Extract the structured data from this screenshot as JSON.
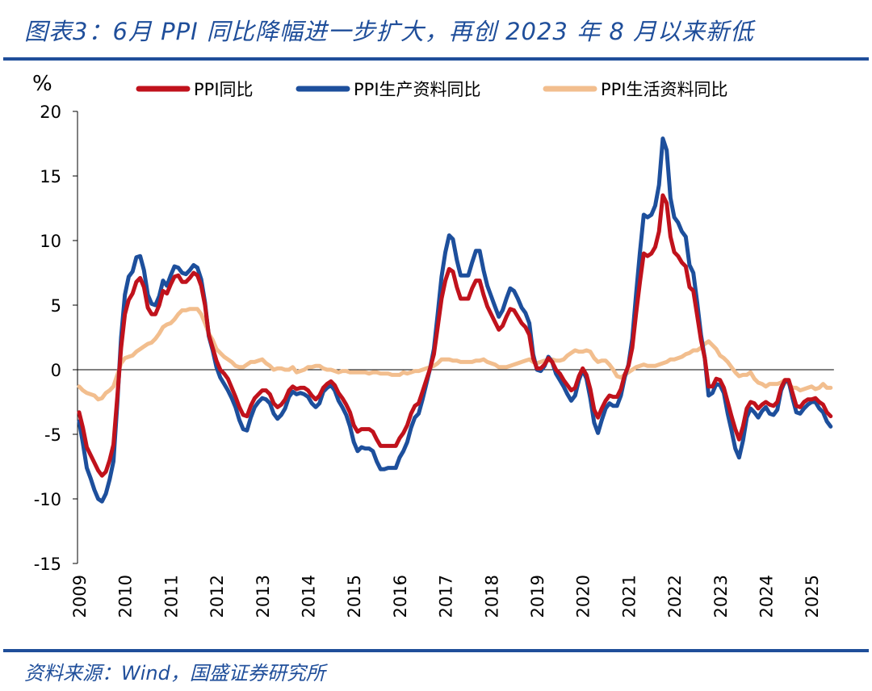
{
  "title": "图表3：6月 PPI 同比降幅进一步扩大，再创 2023 年 8 月以来新低",
  "footer": "资料来源：Wind，国盛证券研究所",
  "colors": {
    "title": "#1f4e9a",
    "rule": "#1f4e9a"
  },
  "chart_data": {
    "type": "line",
    "ylabel": "%",
    "ylim": [
      -15,
      20
    ],
    "yticks": [
      20,
      15,
      10,
      5,
      0,
      -5,
      -10,
      -15
    ],
    "xticks": [
      "2009",
      "2010",
      "2011",
      "2012",
      "2013",
      "2014",
      "2015",
      "2016",
      "2017",
      "2018",
      "2019",
      "2020",
      "2021",
      "2022",
      "2023",
      "2024",
      "2025"
    ],
    "x_start": "2009-01",
    "x_frequency": "monthly",
    "x_end": "2025-06",
    "grid": false,
    "zero_line": true,
    "legend_position": "top",
    "series": [
      {
        "name": "PPI同比",
        "color": "#c0121c",
        "values": [
          -3.3,
          -4.5,
          -6.0,
          -6.6,
          -7.2,
          -7.8,
          -8.2,
          -7.9,
          -7.0,
          -5.8,
          -2.1,
          1.7,
          4.3,
          5.4,
          5.9,
          6.8,
          7.1,
          6.4,
          4.8,
          4.3,
          4.3,
          5.0,
          6.1,
          5.9,
          6.6,
          7.2,
          7.3,
          6.8,
          6.8,
          7.1,
          7.5,
          7.3,
          6.5,
          5.0,
          2.7,
          1.7,
          0.7,
          0.0,
          -0.3,
          -0.7,
          -1.4,
          -2.1,
          -2.9,
          -3.5,
          -3.6,
          -2.8,
          -2.2,
          -1.9,
          -1.6,
          -1.6,
          -1.9,
          -2.6,
          -2.9,
          -2.7,
          -2.3,
          -1.6,
          -1.3,
          -1.5,
          -1.4,
          -1.4,
          -1.6,
          -2.0,
          -2.3,
          -2.0,
          -1.4,
          -1.1,
          -0.9,
          -1.2,
          -1.8,
          -2.2,
          -2.7,
          -3.3,
          -4.3,
          -4.8,
          -4.6,
          -4.6,
          -4.6,
          -4.8,
          -5.4,
          -5.9,
          -5.9,
          -5.9,
          -5.9,
          -5.9,
          -5.3,
          -4.9,
          -4.3,
          -3.4,
          -2.8,
          -2.6,
          -1.7,
          -0.8,
          0.1,
          1.2,
          3.3,
          5.5,
          6.9,
          7.8,
          7.6,
          6.4,
          5.5,
          5.5,
          5.5,
          6.3,
          6.9,
          6.9,
          5.8,
          4.9,
          4.3,
          3.7,
          3.1,
          3.4,
          4.1,
          4.7,
          4.6,
          4.1,
          3.6,
          3.3,
          2.7,
          0.9,
          0.1,
          0.1,
          0.4,
          0.9,
          0.6,
          0.0,
          -0.3,
          -0.8,
          -1.2,
          -1.6,
          -1.4,
          -0.5,
          0.1,
          -0.4,
          -1.5,
          -3.1,
          -3.7,
          -3.0,
          -2.4,
          -2.0,
          -2.1,
          -2.1,
          -1.5,
          -0.4,
          0.3,
          1.7,
          4.4,
          6.8,
          9.0,
          8.8,
          9.0,
          9.5,
          10.7,
          13.5,
          12.9,
          10.3,
          9.1,
          8.8,
          8.3,
          8.0,
          6.4,
          6.1,
          4.2,
          2.3,
          0.9,
          -1.3,
          -1.3,
          -0.7,
          -0.8,
          -1.4,
          -2.5,
          -3.6,
          -4.6,
          -5.4,
          -4.4,
          -3.0,
          -2.5,
          -2.6,
          -3.0,
          -2.7,
          -2.5,
          -2.7,
          -2.8,
          -2.5,
          -1.4,
          -0.8,
          -0.8,
          -1.8,
          -2.8,
          -2.9,
          -2.5,
          -2.3,
          -2.3,
          -2.2,
          -2.5,
          -2.7,
          -3.3,
          -3.6
        ]
      },
      {
        "name": "PPI生产资料同比",
        "color": "#1d4f9c",
        "values": [
          -4.0,
          -5.7,
          -7.6,
          -8.4,
          -9.3,
          -10.0,
          -10.2,
          -9.6,
          -8.5,
          -7.1,
          -2.6,
          2.5,
          5.8,
          7.2,
          7.6,
          8.7,
          8.8,
          7.7,
          5.8,
          5.1,
          5.0,
          5.7,
          6.9,
          6.5,
          7.3,
          8.0,
          7.9,
          7.5,
          7.4,
          7.7,
          8.1,
          7.9,
          7.0,
          5.2,
          2.6,
          1.5,
          0.2,
          -0.6,
          -1.1,
          -1.6,
          -2.2,
          -2.9,
          -3.9,
          -4.6,
          -4.7,
          -3.7,
          -2.9,
          -2.5,
          -2.2,
          -2.3,
          -2.6,
          -3.4,
          -3.8,
          -3.5,
          -3.0,
          -2.1,
          -1.7,
          -1.9,
          -1.8,
          -1.9,
          -2.1,
          -2.6,
          -2.9,
          -2.6,
          -1.7,
          -1.4,
          -1.2,
          -1.6,
          -2.4,
          -2.9,
          -3.5,
          -4.4,
          -5.6,
          -6.3,
          -6.0,
          -6.1,
          -6.1,
          -6.3,
          -7.1,
          -7.7,
          -7.7,
          -7.6,
          -7.6,
          -7.6,
          -6.8,
          -6.3,
          -5.6,
          -4.5,
          -3.7,
          -3.4,
          -2.3,
          -1.1,
          0.1,
          1.6,
          4.3,
          7.2,
          9.1,
          10.4,
          10.1,
          8.5,
          7.3,
          7.3,
          7.3,
          8.3,
          9.2,
          9.2,
          7.7,
          6.5,
          5.7,
          4.9,
          4.1,
          4.6,
          5.5,
          6.3,
          6.1,
          5.5,
          4.8,
          4.4,
          3.6,
          1.2,
          0.0,
          -0.1,
          0.3,
          1.0,
          0.6,
          -0.3,
          -0.8,
          -1.3,
          -1.9,
          -2.4,
          -2.0,
          -0.8,
          0.0,
          -0.7,
          -2.2,
          -4.1,
          -4.9,
          -3.9,
          -3.0,
          -2.6,
          -2.8,
          -2.8,
          -2.0,
          -0.6,
          0.4,
          2.4,
          5.9,
          9.1,
          12.0,
          11.8,
          12.0,
          12.7,
          14.3,
          17.9,
          17.0,
          13.3,
          11.8,
          11.4,
          10.7,
          10.3,
          8.1,
          7.5,
          5.2,
          2.7,
          0.9,
          -2.0,
          -1.8,
          -1.1,
          -1.2,
          -1.8,
          -3.4,
          -4.7,
          -6.1,
          -6.8,
          -5.5,
          -3.7,
          -3.0,
          -3.3,
          -3.7,
          -3.2,
          -2.9,
          -3.4,
          -3.5,
          -3.1,
          -1.6,
          -0.9,
          -0.9,
          -2.2,
          -3.3,
          -3.4,
          -3.0,
          -2.7,
          -2.5,
          -2.5,
          -3.0,
          -3.3,
          -4.0,
          -4.4
        ]
      },
      {
        "name": "PPI生活资料同比",
        "color": "#f2be8e",
        "values": [
          -1.3,
          -1.6,
          -1.8,
          -1.9,
          -2.0,
          -2.3,
          -2.2,
          -1.8,
          -1.6,
          -1.3,
          -0.4,
          0.5,
          0.9,
          1.0,
          1.1,
          1.4,
          1.6,
          1.8,
          2.0,
          2.1,
          2.4,
          2.8,
          3.3,
          3.5,
          3.6,
          3.9,
          4.3,
          4.6,
          4.6,
          4.7,
          4.7,
          4.7,
          4.3,
          3.6,
          2.8,
          2.3,
          1.6,
          1.3,
          1.0,
          0.8,
          0.6,
          0.3,
          0.2,
          0.2,
          0.4,
          0.6,
          0.6,
          0.7,
          0.8,
          0.5,
          0.3,
          0.0,
          0.1,
          0.1,
          0.0,
          0.0,
          0.2,
          -0.2,
          -0.1,
          0.0,
          0.2,
          0.2,
          0.3,
          0.3,
          0.1,
          0.0,
          0.0,
          -0.1,
          -0.2,
          -0.1,
          -0.1,
          -0.2,
          -0.2,
          -0.2,
          -0.2,
          -0.2,
          -0.3,
          -0.2,
          -0.2,
          -0.3,
          -0.3,
          -0.3,
          -0.4,
          -0.4,
          -0.4,
          -0.2,
          -0.3,
          -0.2,
          -0.1,
          -0.1,
          0.0,
          0.1,
          0.2,
          0.3,
          0.5,
          0.8,
          0.8,
          0.8,
          0.7,
          0.7,
          0.6,
          0.6,
          0.6,
          0.6,
          0.7,
          0.7,
          0.8,
          0.6,
          0.5,
          0.4,
          0.2,
          0.2,
          0.2,
          0.3,
          0.4,
          0.5,
          0.6,
          0.7,
          0.8,
          0.6,
          0.5,
          0.6,
          0.7,
          0.7,
          0.8,
          0.7,
          0.7,
          0.8,
          1.1,
          1.3,
          1.5,
          1.4,
          1.4,
          1.5,
          1.4,
          0.9,
          0.6,
          0.7,
          0.7,
          0.4,
          0.0,
          -0.5,
          -0.6,
          -0.4,
          -0.2,
          0.0,
          0.2,
          0.3,
          0.4,
          0.3,
          0.3,
          0.3,
          0.4,
          0.5,
          0.6,
          0.8,
          0.8,
          0.9,
          1.0,
          1.2,
          1.3,
          1.5,
          1.5,
          1.7,
          2.0,
          2.2,
          1.9,
          1.6,
          1.1,
          0.9,
          0.6,
          0.2,
          -0.2,
          -0.5,
          -0.4,
          -0.4,
          -0.2,
          -0.7,
          -1.0,
          -1.1,
          -1.3,
          -1.1,
          -1.1,
          -1.1,
          -1.0,
          -0.8,
          -1.1,
          -1.4,
          -1.4,
          -1.6,
          -1.5,
          -1.4,
          -1.3,
          -1.5,
          -1.4,
          -1.1,
          -1.4,
          -1.4
        ]
      }
    ]
  }
}
